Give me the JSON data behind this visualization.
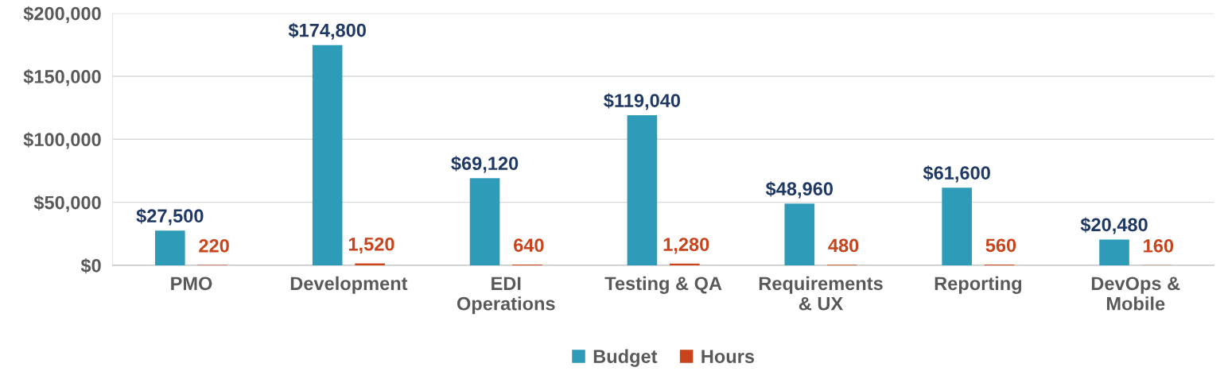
{
  "chart_data": {
    "type": "bar",
    "categories": [
      "PMO",
      "Development",
      "EDI Operations",
      "Testing & QA",
      "Requirements & UX",
      "Reporting",
      "DevOps & Mobile"
    ],
    "series": [
      {
        "name": "Budget",
        "color": "#2e9bb8",
        "values": [
          27500,
          174800,
          69120,
          119040,
          48960,
          61600,
          20480
        ],
        "value_labels": [
          "$27,500",
          "$174,800",
          "$69,120",
          "$119,040",
          "$48,960",
          "$61,600",
          "$20,480"
        ]
      },
      {
        "name": "Hours",
        "color": "#c9441c",
        "values": [
          220,
          1520,
          640,
          1280,
          480,
          560,
          160
        ],
        "value_labels": [
          "220",
          "1,520",
          "640",
          "1,280",
          "480",
          "560",
          "160"
        ]
      }
    ],
    "ylim": [
      0,
      200000
    ],
    "yticks": [
      {
        "value": 0,
        "label": "$0"
      },
      {
        "value": 50000,
        "label": "$50,000"
      },
      {
        "value": 100000,
        "label": "$100,000"
      },
      {
        "value": 150000,
        "label": "$150,000"
      },
      {
        "value": 200000,
        "label": "$200,000"
      }
    ],
    "grid": "y",
    "legend": "bottom"
  }
}
